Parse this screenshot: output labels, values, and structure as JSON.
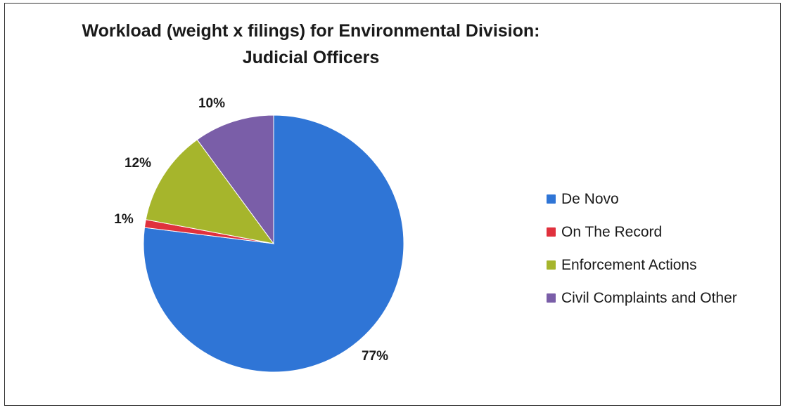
{
  "chart_data": {
    "type": "pie",
    "title_lines": [
      "Workload (weight x filings) for Environmental Division:",
      "Judicial Officers"
    ],
    "slices": [
      {
        "name": "De Novo",
        "value": 77,
        "label": "77%",
        "color": "#2f75d6"
      },
      {
        "name": "On The Record",
        "value": 1,
        "label": "1%",
        "color": "#e0313d"
      },
      {
        "name": "Enforcement Actions",
        "value": 12,
        "label": "12%",
        "color": "#a6b52c"
      },
      {
        "name": "Civil Complaints and Other",
        "value": 10,
        "label": "10%",
        "color": "#7a5ea8"
      }
    ],
    "legend_position": "right"
  }
}
